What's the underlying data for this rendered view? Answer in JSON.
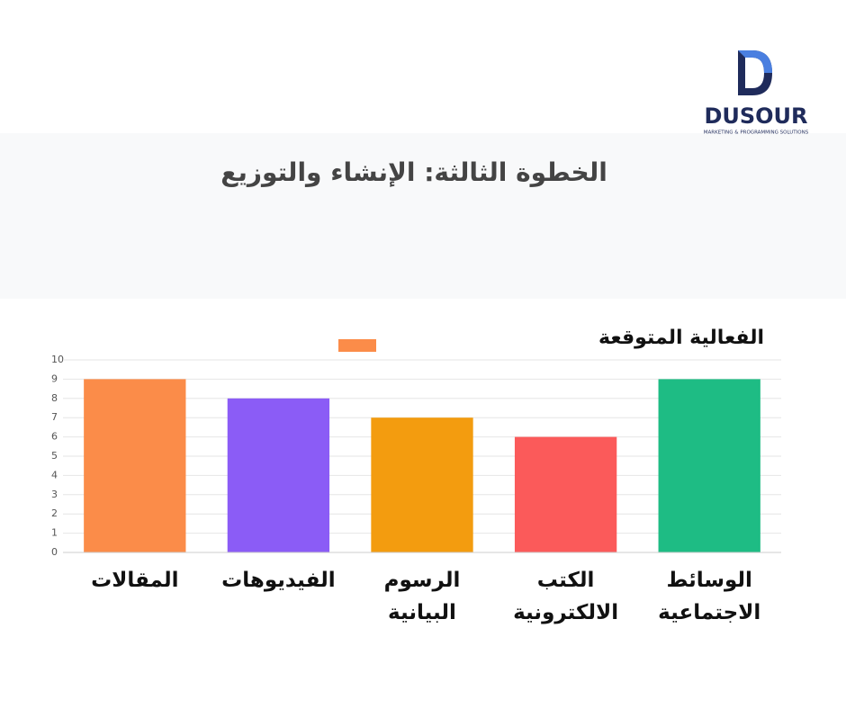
{
  "header": {
    "brand": "DUSOUR",
    "tagline": "MARKETING & PROGRAMMING SOLUTIONS"
  },
  "chart_data": {
    "type": "bar",
    "title": "الخطوة الثالثة: الإنشاء والتوزيع",
    "categories": [
      "المقالات",
      "الفيديوهات",
      "الرسوم البيانية",
      "الكتب الالكترونية",
      "الوسائط الاجتماعية"
    ],
    "series": [
      {
        "name": "الفعالية المتوقعة",
        "color": "#fb8c49",
        "values": [
          9,
          8,
          7,
          6,
          9
        ]
      }
    ],
    "bar_colors": [
      "#fb8c49",
      "#8b5cf6",
      "#f39c0f",
      "#fb5a5a",
      "#1ebc84"
    ],
    "ylim": [
      0,
      10
    ],
    "yticks": [
      0,
      1,
      2,
      3,
      4,
      5,
      6,
      7,
      8,
      9,
      10
    ],
    "grid": true
  }
}
